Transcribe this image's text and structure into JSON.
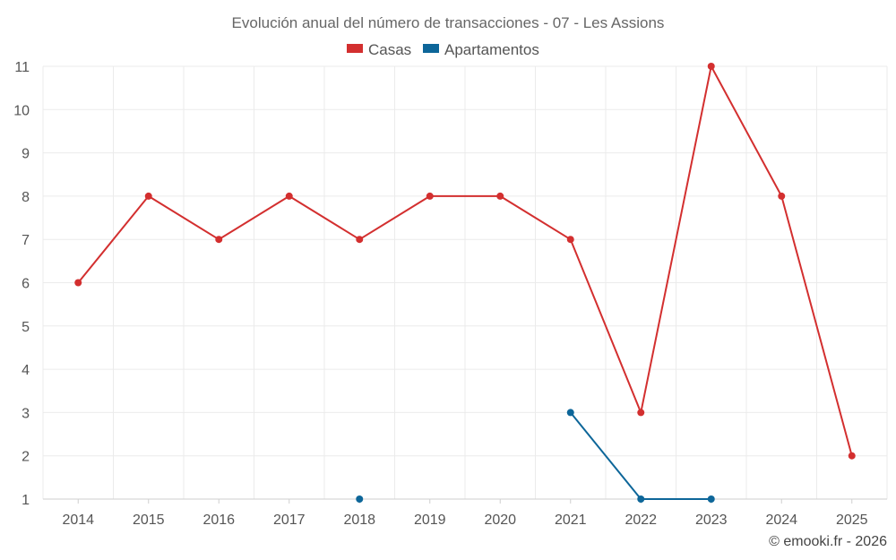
{
  "chart_data": {
    "type": "line",
    "title": "Evolución anual del número de transacciones - 07 - Les Assions",
    "categories": [
      "2014",
      "2015",
      "2016",
      "2017",
      "2018",
      "2019",
      "2020",
      "2021",
      "2022",
      "2023",
      "2024",
      "2025"
    ],
    "series": [
      {
        "name": "Casas",
        "color": "#d32f2f",
        "values": [
          6,
          8,
          7,
          8,
          7,
          8,
          8,
          7,
          3,
          11,
          8,
          2
        ]
      },
      {
        "name": "Apartamentos",
        "color": "#0d6699",
        "values": [
          null,
          null,
          null,
          null,
          1,
          null,
          null,
          3,
          1,
          1,
          null,
          null
        ]
      }
    ],
    "yticks": [
      "1",
      "2",
      "3",
      "4",
      "5",
      "6",
      "7",
      "8",
      "9",
      "10",
      "11"
    ],
    "ylim": [
      1,
      11
    ],
    "grid": true,
    "legend": "top-center"
  },
  "footer": {
    "copyright": "© emooki.fr - 2026"
  }
}
